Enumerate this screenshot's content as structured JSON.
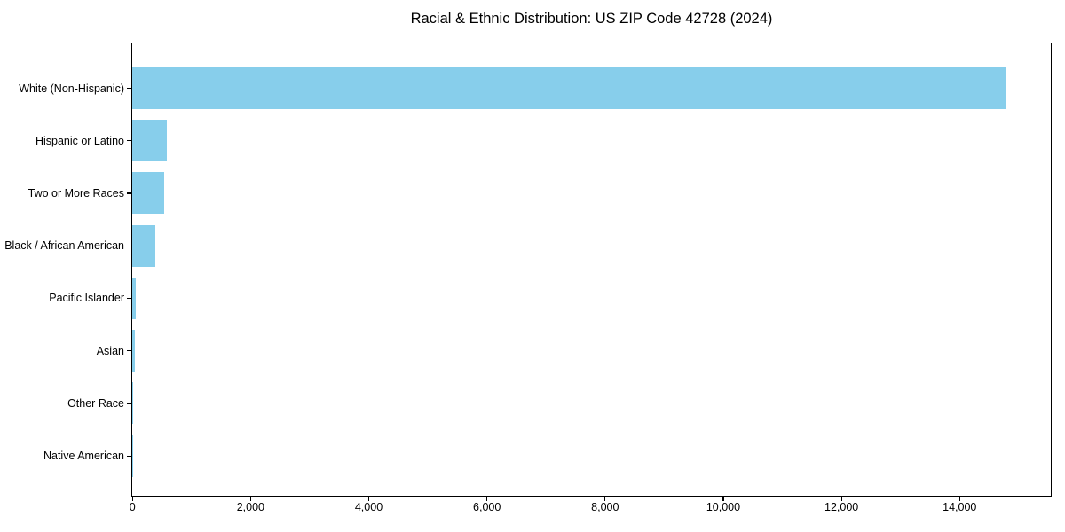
{
  "chart_data": {
    "type": "bar",
    "orientation": "horizontal",
    "title": "Racial & Ethnic Distribution: US ZIP Code 42728 (2024)",
    "categories": [
      "White (Non-Hispanic)",
      "Hispanic or Latino",
      "Two or More Races",
      "Black / African American",
      "Pacific Islander",
      "Asian",
      "Other Race",
      "Native American"
    ],
    "values": [
      14800,
      590,
      540,
      385,
      60,
      45,
      10,
      5
    ],
    "xlabel": "",
    "ylabel": "",
    "xlim": [
      0,
      15540
    ],
    "x_ticks": [
      0,
      2000,
      4000,
      6000,
      8000,
      10000,
      12000,
      14000
    ],
    "x_tick_labels": [
      "0",
      "2,000",
      "4,000",
      "6,000",
      "8,000",
      "10,000",
      "12,000",
      "14,000"
    ],
    "grid": false,
    "legend": "none",
    "bar_color": "#87CEEB",
    "spine_color": "#000000",
    "text_color": "#000000",
    "background_color": "#ffffff"
  }
}
